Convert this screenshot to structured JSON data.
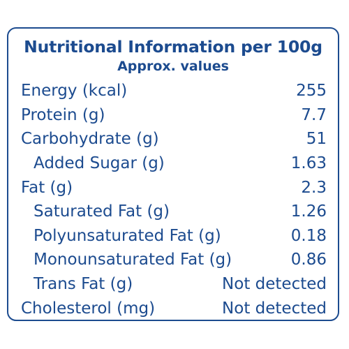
{
  "table": {
    "title": "Nutritional Information per 100g",
    "subtitle": "Approx. values",
    "rows": [
      {
        "label": "Energy (kcal)",
        "value": "255"
      },
      {
        "label": "Protein (g)",
        "value": "7.7"
      },
      {
        "label": "Carbohydrate (g)",
        "value": "51"
      },
      {
        "label": "Added Sugar (g)",
        "value": "1.63"
      },
      {
        "label": "Fat (g)",
        "value": "2.3"
      },
      {
        "label": "Saturated Fat (g)",
        "value": "1.26"
      },
      {
        "label": "Polyunsaturated Fat (g)",
        "value": "0.18"
      },
      {
        "label": "Monounsaturated Fat (g)",
        "value": "0.86"
      },
      {
        "label": "Trans Fat (g)",
        "value": "Not detected"
      },
      {
        "label": "Cholesterol (mg)",
        "value": "Not detected"
      }
    ],
    "text_color": "#1c4b8f"
  }
}
